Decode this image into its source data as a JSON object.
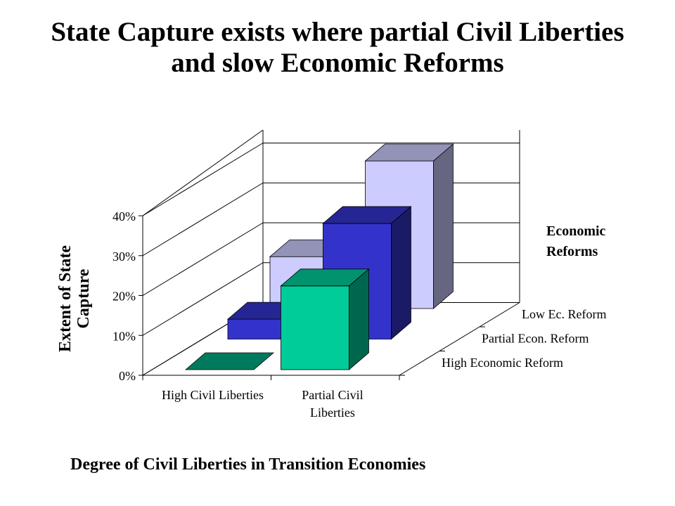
{
  "chart_data": {
    "type": "bar",
    "title": "State Capture exists where partial Civil Liberties",
    "title_line2": "and slow Economic Reforms",
    "ylabel": "Extent of State",
    "ylabel_line2": "Capture",
    "xlabel": "Degree of Civil Liberties in Transition Economies",
    "legend_title": "Economic",
    "legend_title_line2": "Reforms",
    "categories": [
      "High Civil Liberties",
      "Partial Civil"
    ],
    "category_line2": [
      "",
      "Liberties"
    ],
    "y_ticks": [
      "0%",
      "10%",
      "20%",
      "30%",
      "40%"
    ],
    "ylim": [
      0,
      40
    ],
    "grid": true,
    "three_d": true,
    "series": [
      {
        "name": "High Economic Reform",
        "values": [
          0,
          21
        ],
        "color": "#00CC99"
      },
      {
        "name": "Partial Econ. Reform",
        "values": [
          5,
          29
        ],
        "color": "#3333CC"
      },
      {
        "name": "Low Ec. Reform",
        "values": [
          13,
          37
        ],
        "color": "#CCCCFF"
      }
    ]
  }
}
